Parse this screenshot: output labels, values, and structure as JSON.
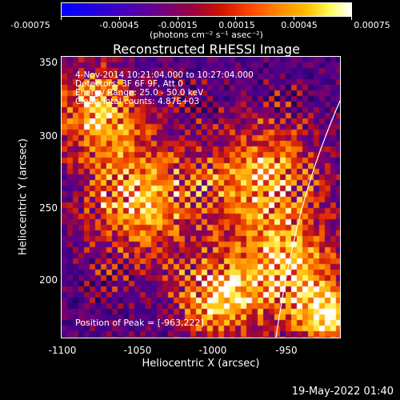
{
  "colorbar": {
    "ticks": [
      "-0.00075",
      "-0.00045",
      "-0.00015",
      "0.00015",
      "0.00045",
      "0.00075"
    ],
    "units": "(photons cm⁻² s⁻¹ asec⁻²)"
  },
  "title": "Reconstructed RHESSI Image",
  "annotations": {
    "time": "4-Nov-2014 10:21:04.000 to 10:27:04.000",
    "detectors": "Detectors: 3F 6F 9F, Att 0",
    "energy": "Energy Range: 25.0 - 50.0 keV",
    "clean": "Clean     Total counts: 4.87E+03",
    "peak": "Position of Peak = [-963,222]"
  },
  "axes": {
    "x_label": "Heliocentric X (arcsec)",
    "y_label": "Heliocentric Y (arcsec)",
    "x_ticks": [
      "-1100",
      "-1050",
      "-1000",
      "-950"
    ],
    "y_ticks": [
      "350",
      "300",
      "250",
      "200"
    ],
    "x_range": [
      -1100,
      -914
    ],
    "y_range": [
      158,
      352
    ]
  },
  "limb_line_color": "#ffffff",
  "footer": {
    "timestamp": "19-May-2022 01:40"
  }
}
